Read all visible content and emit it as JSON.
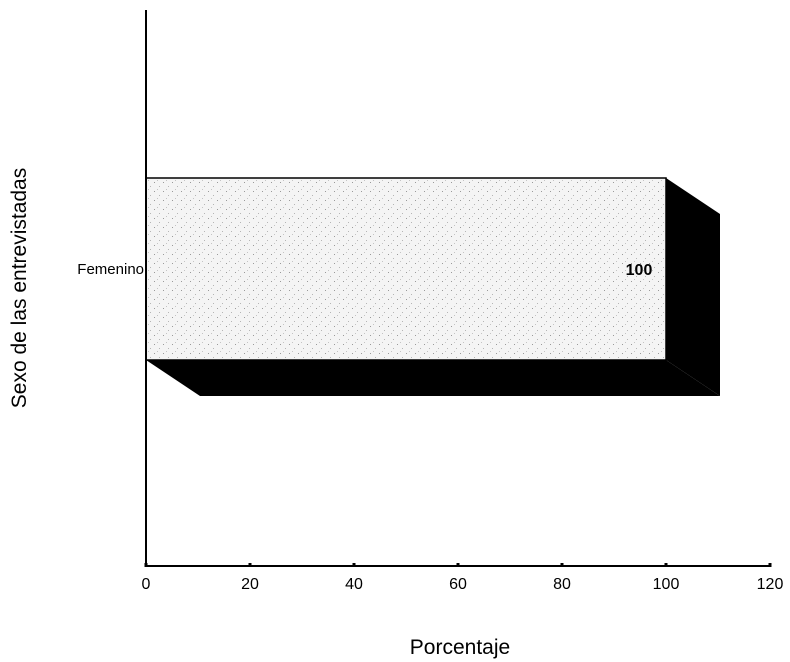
{
  "chart_data": {
    "type": "bar",
    "orientation": "horizontal",
    "three_d": true,
    "title": "",
    "xlabel": "Porcentaje",
    "ylabel": "Sexo de las entrevistadas",
    "categories": [
      "Femenino"
    ],
    "values": [
      100
    ],
    "data_labels": [
      "100"
    ],
    "xlim": [
      0,
      120
    ],
    "x_ticks": [
      0,
      20,
      40,
      60,
      80,
      100,
      120
    ],
    "grid": false,
    "legend": "none",
    "colors": {
      "bar_face": "#f2f2f2",
      "bar_shadow": "#000000",
      "axis": "#000000"
    }
  }
}
